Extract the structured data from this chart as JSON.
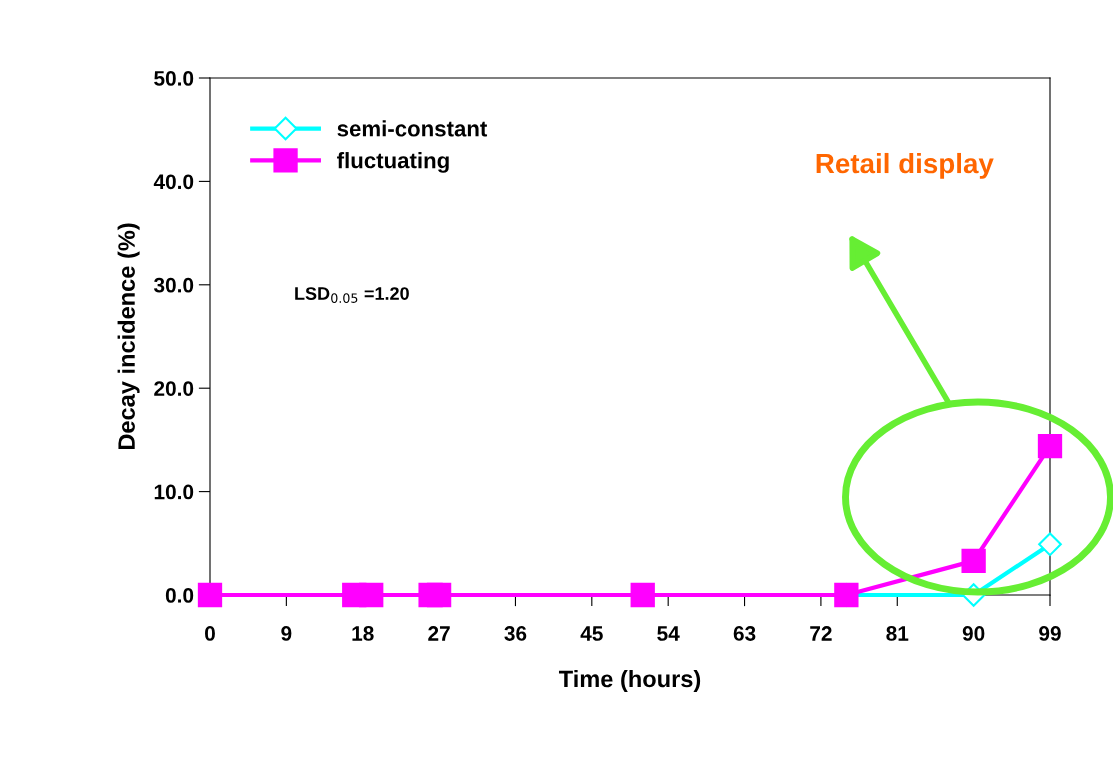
{
  "chart_data": {
    "type": "line",
    "xlabel": "Time (hours)",
    "ylabel": "Decay incidence (%)",
    "xlim": [
      0,
      99
    ],
    "xticks": [
      0,
      9,
      18,
      27,
      36,
      45,
      54,
      63,
      72,
      81,
      90,
      99
    ],
    "ylim": [
      0,
      50
    ],
    "yticks": [
      {
        "value": 0,
        "label": "0.0"
      },
      {
        "value": 10,
        "label": "10.0"
      },
      {
        "value": 20,
        "label": "20.0"
      },
      {
        "value": 30,
        "label": "30.0"
      },
      {
        "value": 40,
        "label": "40.0"
      },
      {
        "value": 50,
        "label": "50.0"
      }
    ],
    "x": [
      0,
      17,
      19,
      26,
      27,
      51,
      75,
      90,
      99
    ],
    "series": [
      {
        "name": "semi-constant",
        "color": "#00ffff",
        "marker": "diamond",
        "values": [
          null,
          null,
          null,
          null,
          null,
          null,
          0,
          0,
          4.9
        ]
      },
      {
        "name": "fluctuating",
        "color": "#ff00ff",
        "marker": "square",
        "values": [
          0,
          0,
          0,
          0,
          0,
          0,
          0,
          3.3,
          14.4
        ]
      }
    ],
    "legend": "top left",
    "grid": false,
    "annotations": [
      "LSD$_{0.05}$ =1.20",
      "Retail display"
    ]
  }
}
